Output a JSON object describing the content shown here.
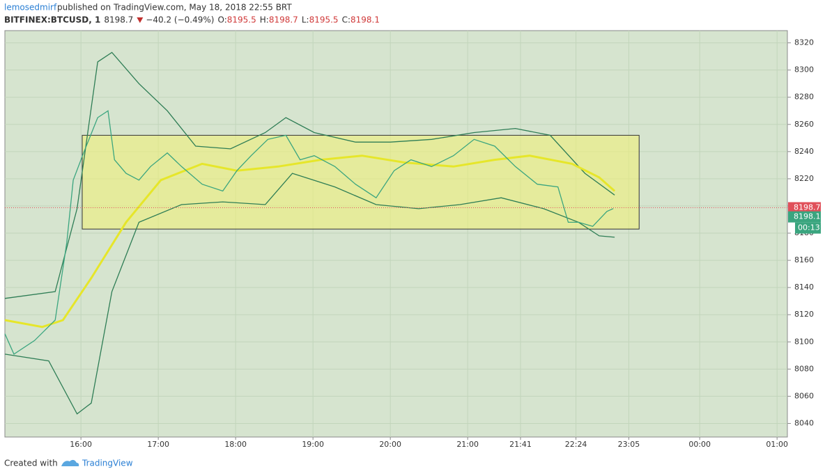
{
  "chart_data": {
    "type": "line",
    "author": "lemosedmirf",
    "title": "published on TradingView.com, May 18, 2018 22:55 BRT",
    "symbol": "BITFINEX:BTCUSD, 1",
    "last": 8198.7,
    "change": "−40.2 (−0.49%)",
    "ohlc": [
      {
        "label": "O:",
        "value": 8195.5
      },
      {
        "label": "H:",
        "value": 8198.7
      },
      {
        "label": "L:",
        "value": 8195.5
      },
      {
        "label": "C:",
        "value": 8198.1
      }
    ],
    "footer": {
      "created": "Created with",
      "brand": "TradingView"
    },
    "xlim": [
      901,
      1508
    ],
    "ylim": [
      8030,
      8329
    ],
    "yticks": [
      8040,
      8060,
      8080,
      8100,
      8120,
      8140,
      8160,
      8180,
      8200,
      8220,
      8240,
      8260,
      8280,
      8300,
      8320
    ],
    "xticks": [
      {
        "value": 960,
        "label": "16:00"
      },
      {
        "value": 1020,
        "label": "17:00"
      },
      {
        "value": 1080,
        "label": "18:00"
      },
      {
        "value": 1140,
        "label": "19:00"
      },
      {
        "value": 1200,
        "label": "20:00"
      },
      {
        "value": 1260,
        "label": "21:00"
      },
      {
        "value": 1301,
        "label": "21:41"
      },
      {
        "value": 1344,
        "label": "22:24"
      },
      {
        "value": 1385,
        "label": "23:05"
      },
      {
        "value": 1440,
        "label": "00:00"
      },
      {
        "value": 1500,
        "label": "01:00"
      }
    ],
    "grid": true,
    "box": {
      "x": [
        961,
        1393
      ],
      "y": [
        8183,
        8252
      ],
      "color": "#eef07a"
    },
    "price_markers": [
      {
        "value": 8198.7,
        "color": "#e0505a"
      },
      {
        "value": 8198.1,
        "color": "#3aa57f"
      }
    ],
    "countdown": "00:13",
    "series": [
      {
        "color": "#2e7d55",
        "x": [
          901,
          940,
          957,
          973,
          984,
          1005,
          1027,
          1049,
          1076,
          1103,
          1119,
          1141,
          1173,
          1200,
          1232,
          1265,
          1297,
          1324,
          1351,
          1374
        ],
        "values": [
          8132,
          8137,
          8198,
          8306,
          8313,
          8290,
          8270,
          8244,
          8242,
          8254,
          8265,
          8254,
          8247,
          8247,
          8249,
          8254,
          8257,
          8252,
          8224,
          8208
        ]
      },
      {
        "color": "#2e7d55",
        "x": [
          901,
          935,
          957,
          968,
          984,
          1005,
          1038,
          1070,
          1103,
          1124,
          1157,
          1189,
          1222,
          1254,
          1286,
          1319,
          1346,
          1362,
          1374
        ],
        "values": [
          8091,
          8086,
          8047,
          8055,
          8137,
          8188,
          8201,
          8203,
          8201,
          8224,
          8214,
          8201,
          8198,
          8201,
          8206,
          8198,
          8188,
          8178,
          8177
        ]
      },
      {
        "color": "#e6e62a",
        "x": [
          901,
          930,
          946,
          968,
          995,
          1022,
          1054,
          1081,
          1113,
          1146,
          1178,
          1211,
          1249,
          1281,
          1308,
          1341,
          1362,
          1374
        ],
        "values": [
          8116,
          8111,
          8116,
          8147,
          8188,
          8219,
          8231,
          8226,
          8229,
          8234,
          8237,
          8232,
          8229,
          8234,
          8237,
          8231,
          8221,
          8211
        ]
      },
      {
        "color": "#3aa57f",
        "x": [
          901,
          908,
          924,
          940,
          949,
          954,
          962,
          973,
          981,
          986,
          995,
          1005,
          1014,
          1027,
          1038,
          1054,
          1070,
          1081,
          1092,
          1105,
          1119,
          1130,
          1141,
          1157,
          1173,
          1189,
          1203,
          1216,
          1232,
          1249,
          1265,
          1281,
          1297,
          1314,
          1330,
          1338,
          1346,
          1357,
          1368,
          1373
        ],
        "values": [
          8106,
          8091,
          8101,
          8116,
          8173,
          8219,
          8239,
          8265,
          8270,
          8234,
          8224,
          8219,
          8229,
          8239,
          8229,
          8216,
          8211,
          8226,
          8237,
          8249,
          8252,
          8234,
          8237,
          8229,
          8216,
          8206,
          8226,
          8234,
          8229,
          8237,
          8249,
          8244,
          8229,
          8216,
          8214,
          8188,
          8188,
          8185,
          8196,
          8198.1
        ]
      }
    ]
  }
}
